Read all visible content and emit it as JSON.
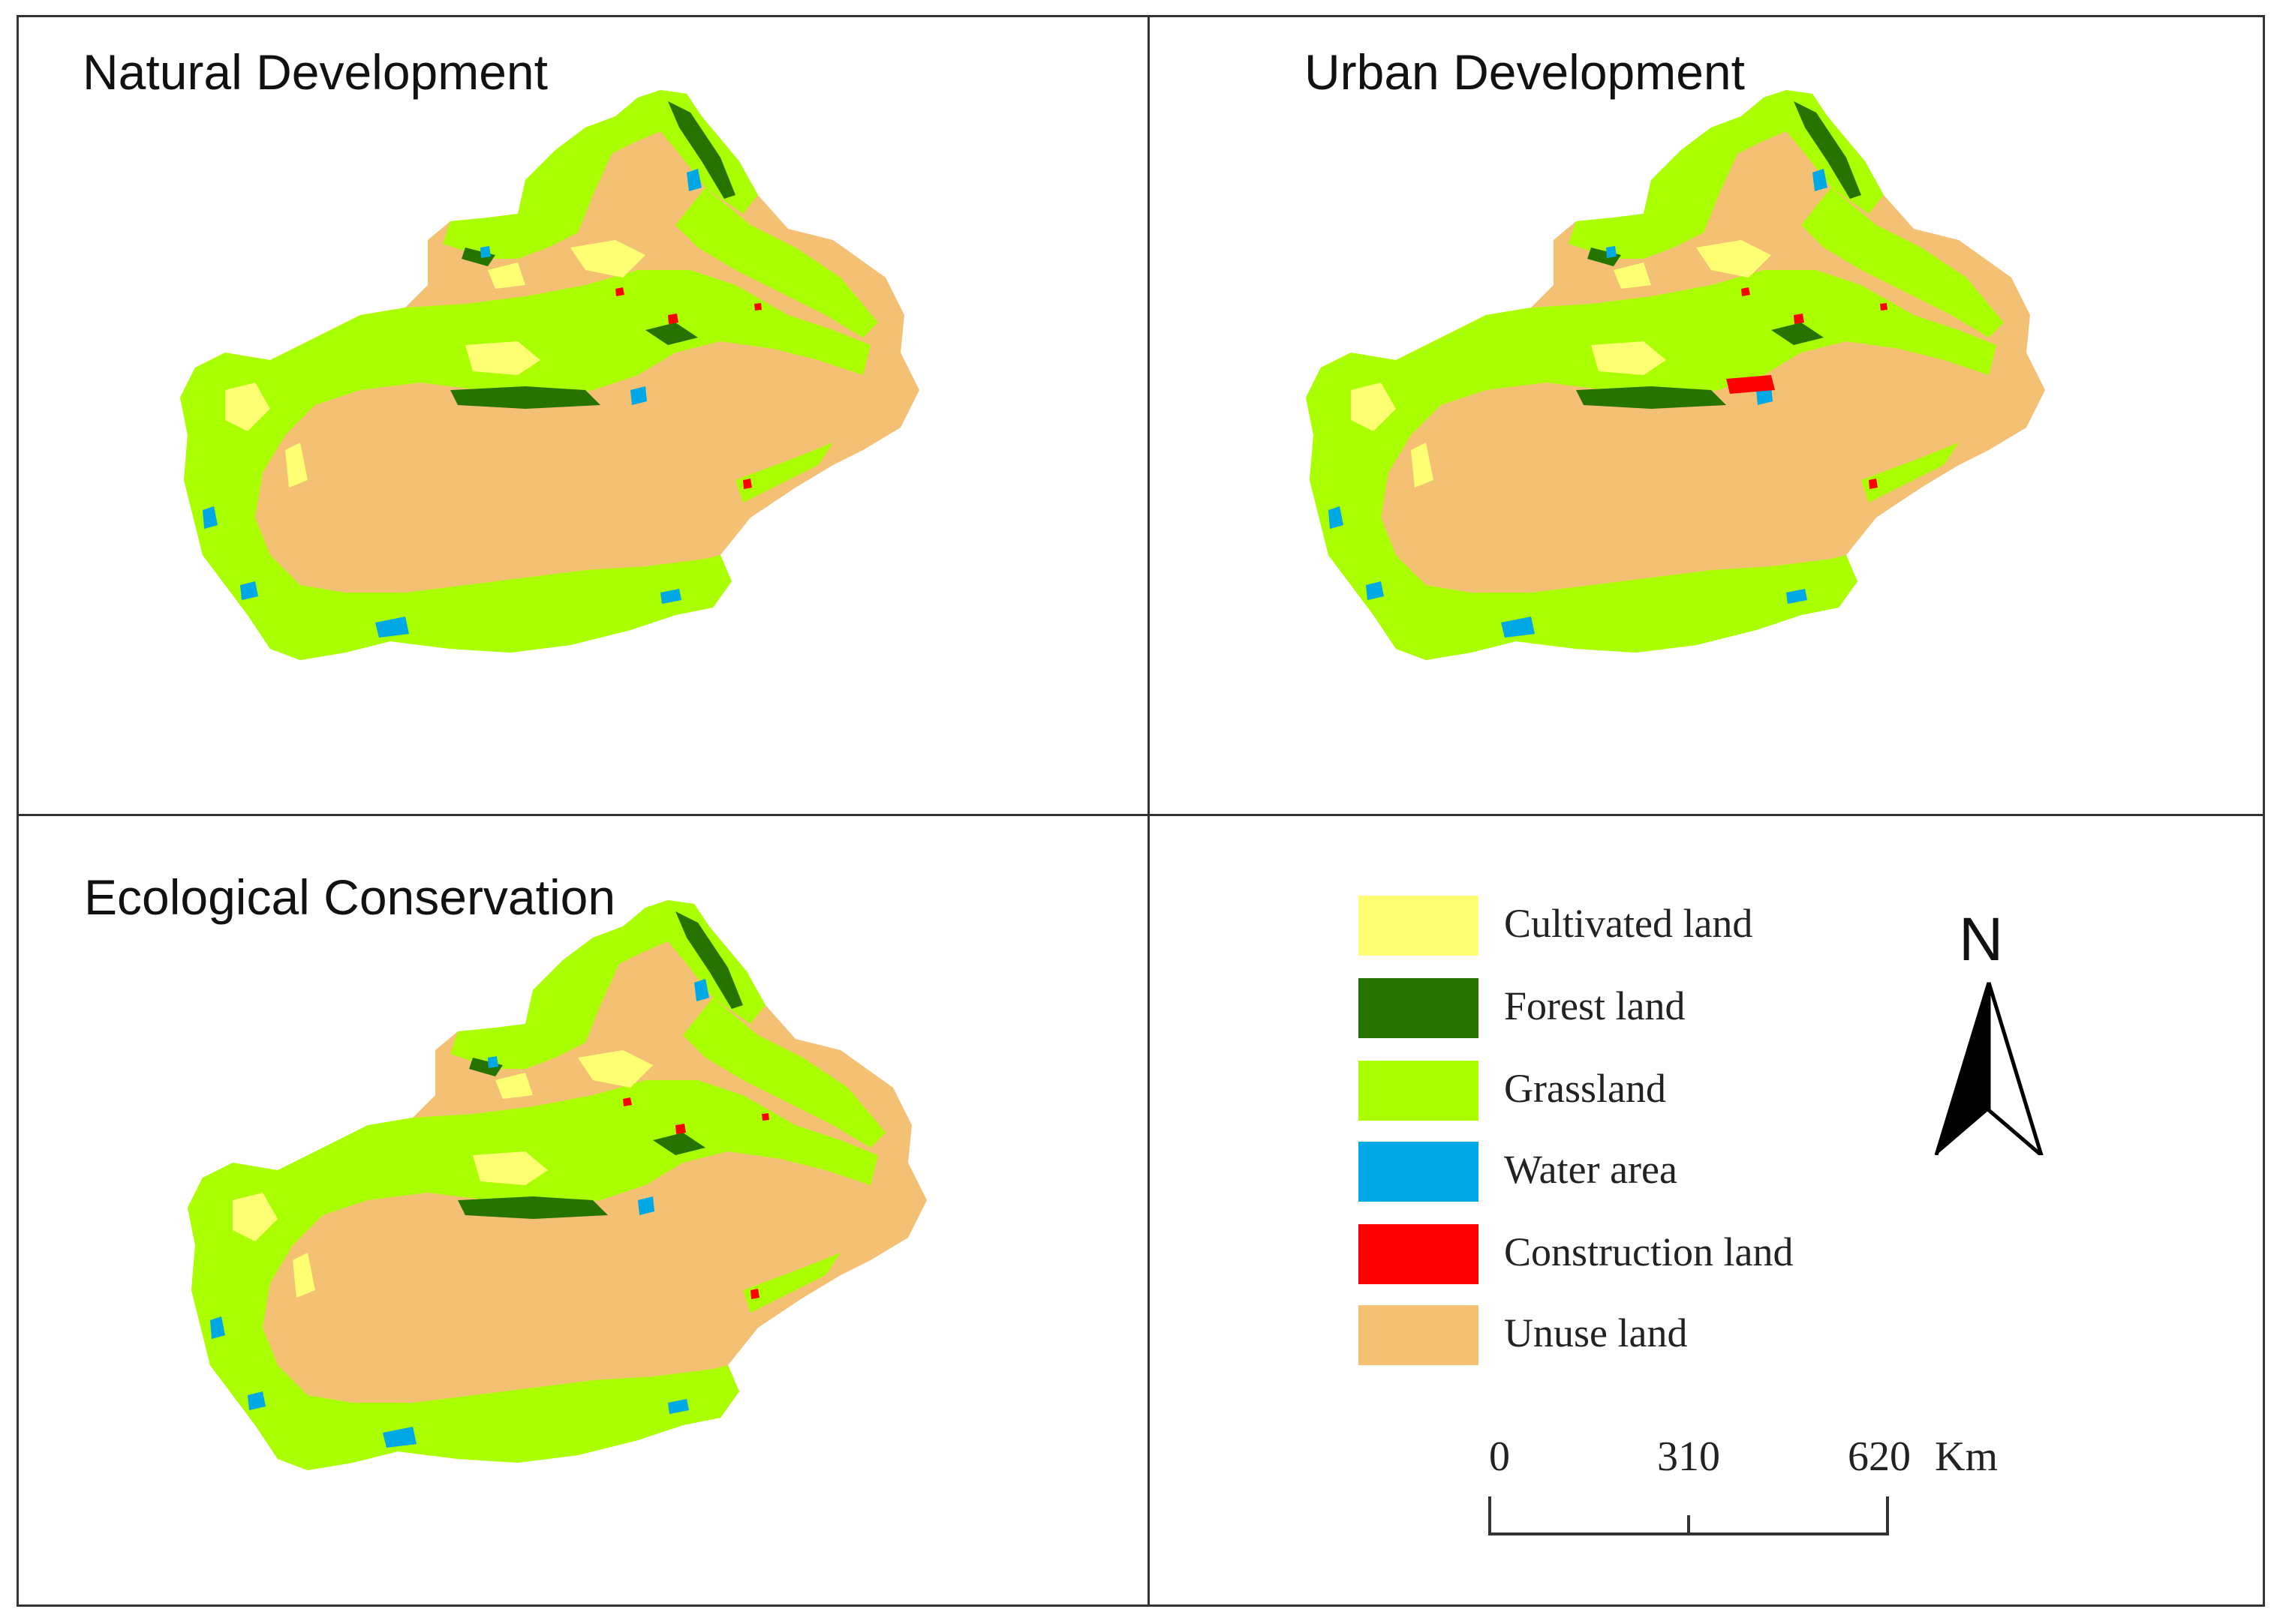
{
  "panels": [
    {
      "title": "Natural Development"
    },
    {
      "title": "Urban Development"
    },
    {
      "title": "Ecological Conservation"
    }
  ],
  "legend": [
    {
      "label": "Cultivated land",
      "color": "#ffff73"
    },
    {
      "label": "Forest land",
      "color": "#267300"
    },
    {
      "label": "Grassland",
      "color": "#aaff00"
    },
    {
      "label": "Water area",
      "color": "#00a9e6"
    },
    {
      "label": "Construction land",
      "color": "#ff0000"
    },
    {
      "label": "Unuse land",
      "color": "#f3c074"
    }
  ],
  "north_arrow": {
    "label": "N",
    "icon": "north-arrow-icon"
  },
  "scale_bar": {
    "ticks": [
      "0",
      "310",
      "620"
    ],
    "unit": "Km"
  }
}
